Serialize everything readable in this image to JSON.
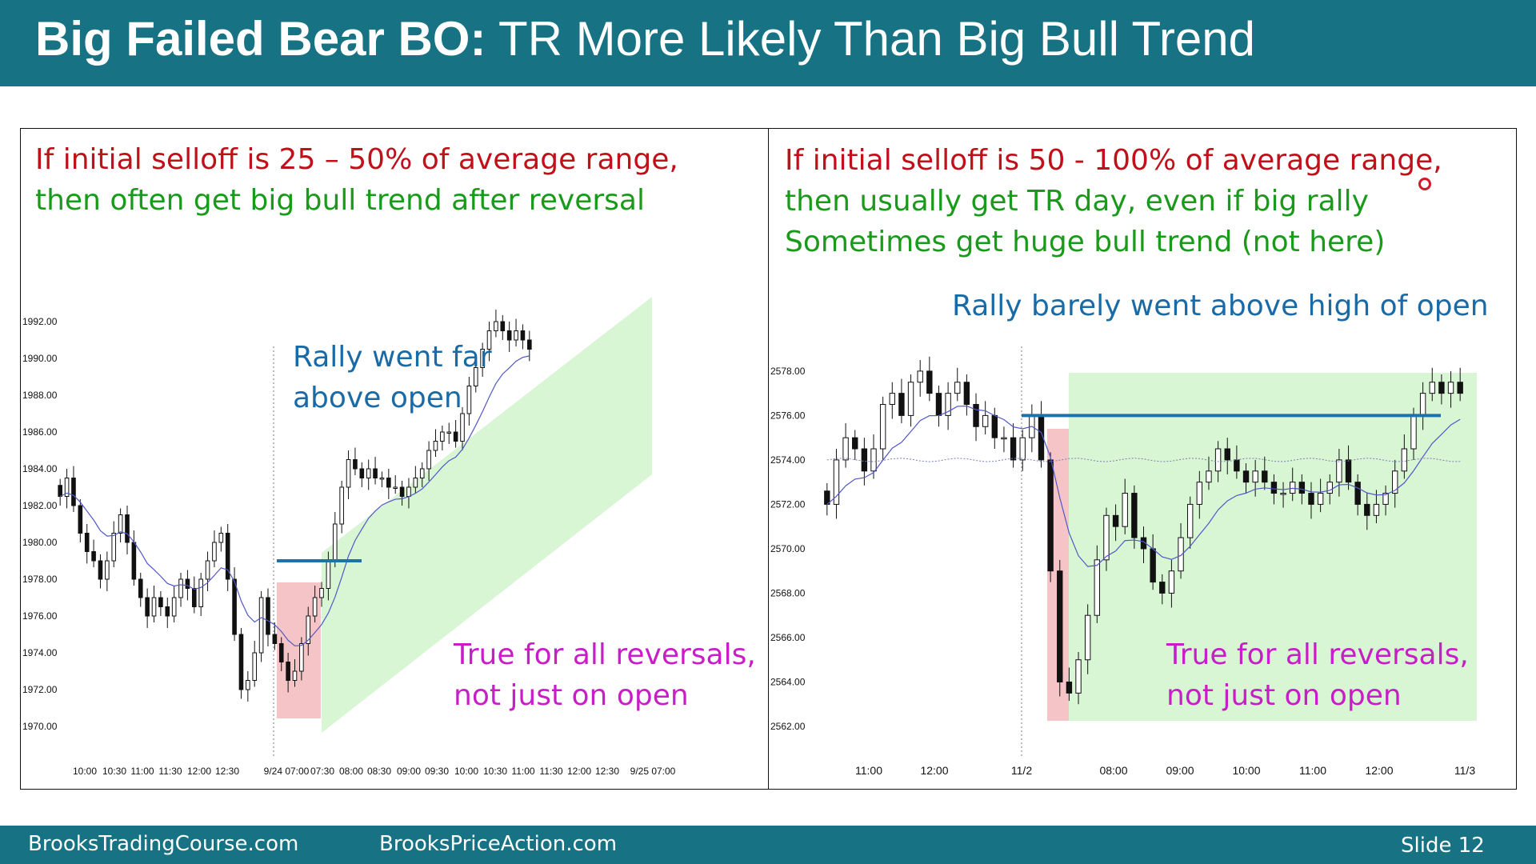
{
  "header": {
    "title_bold": "Big Failed Bear BO:",
    "title_rest": " TR More Likely Than Big Bull Trend"
  },
  "footer": {
    "site1": "BrooksTradingCourse.com",
    "site2": "BrooksPriceAction.com",
    "slide": "Slide  12"
  },
  "colors": {
    "header_bg": "#177283",
    "note_red": "#c0101a",
    "note_green": "#1a9a1a",
    "note_blue": "#1a6aa6",
    "note_magenta": "#c81ec8",
    "zone_green": "#d8f5d4",
    "zone_red": "#f4c4c6",
    "level_line": "#1f72a9"
  },
  "left_panel": {
    "line1": "If initial selloff is 25 – 50% of average range,",
    "line2": "then often get big bull trend after reversal",
    "callout1": "Rally went far",
    "callout2": "above open",
    "bottom1": "True for all reversals,",
    "bottom2": "not just on open"
  },
  "right_panel": {
    "line1": "If initial selloff is 50 - 100% of average range,",
    "line2": "then usually get TR day, even if big rally",
    "line3": "Sometimes get huge bull trend (not here)",
    "callout": "Rally barely went above high of open",
    "bottom1": "True for all reversals,",
    "bottom2": "not just on open"
  },
  "chart_data": [
    {
      "type": "candlestick",
      "ylim": [
        1970,
        1993
      ],
      "yticks": [
        "1992.00",
        "1990.00",
        "1988.00",
        "1986.00",
        "1984.00",
        "1982.00",
        "1980.00",
        "1978.00",
        "1976.00",
        "1974.00",
        "1972.00",
        "1970.00"
      ],
      "xticks": [
        "10:00",
        "10:30",
        "11:00",
        "11:30",
        "12:00",
        "12:30",
        "9/24 07:00",
        "07:30",
        "08:00",
        "08:30",
        "09:00",
        "09:30",
        "10:00",
        "10:30",
        "11:00",
        "11:30",
        "12:00",
        "12:30",
        "9/25 07:00"
      ],
      "approx_close": [
        1982.5,
        1983.5,
        1982,
        1980.5,
        1979.5,
        1979,
        1978,
        1979,
        1980.5,
        1981.5,
        1980,
        1978,
        1977,
        1976,
        1977,
        1976.5,
        1976,
        1977,
        1978,
        1977.5,
        1976.5,
        1978,
        1979,
        1980,
        1980.5,
        1978,
        1975,
        1972,
        1972.5,
        1974,
        1977,
        1975,
        1974.5,
        1973.5,
        1972.5,
        1973,
        1974.5,
        1976,
        1977,
        1977.5,
        1979,
        1981,
        1983,
        1984.5,
        1984,
        1983.5,
        1984,
        1983.5,
        1983.5,
        1983,
        1983,
        1982.5,
        1983,
        1983.5,
        1984,
        1985,
        1985.5,
        1986,
        1986,
        1985.5,
        1987,
        1988.5,
        1989.5,
        1990.5,
        1991.5,
        1992,
        1991.5,
        1991,
        1991.5,
        1991,
        1990.5
      ],
      "key_level": 1979,
      "annotation": "Rally went far above open"
    },
    {
      "type": "candlestick",
      "ylim": [
        2562,
        2578.5
      ],
      "yticks": [
        "2578.00",
        "2576.00",
        "2574.00",
        "2572.00",
        "2570.00",
        "2568.00",
        "2566.00",
        "2564.00",
        "2562.00"
      ],
      "xticks": [
        "11:00",
        "12:00",
        "11/2",
        "08:00",
        "09:00",
        "10:00",
        "11:00",
        "12:00",
        "11/3"
      ],
      "approx_close": [
        2572,
        2574,
        2575,
        2574.5,
        2573.5,
        2574.5,
        2576.5,
        2577,
        2576,
        2577.5,
        2578,
        2577,
        2576,
        2577,
        2577.5,
        2576.5,
        2575.5,
        2576,
        2575,
        2575,
        2574,
        2575,
        2576,
        2574,
        2569,
        2564,
        2563.5,
        2565,
        2567,
        2569.5,
        2571.5,
        2571,
        2572.5,
        2570.5,
        2570,
        2568.5,
        2568,
        2569,
        2570.5,
        2572,
        2573,
        2573.5,
        2574.5,
        2574,
        2573.5,
        2573,
        2573.5,
        2573,
        2572.5,
        2572.5,
        2573,
        2572.5,
        2572,
        2572.5,
        2573,
        2574,
        2573,
        2572,
        2571.5,
        2572,
        2572.5,
        2573.5,
        2574.5,
        2576,
        2577,
        2577.5,
        2577,
        2577.5,
        2577
      ],
      "key_level": 2576,
      "annotation": "Rally barely went above high of open"
    }
  ]
}
